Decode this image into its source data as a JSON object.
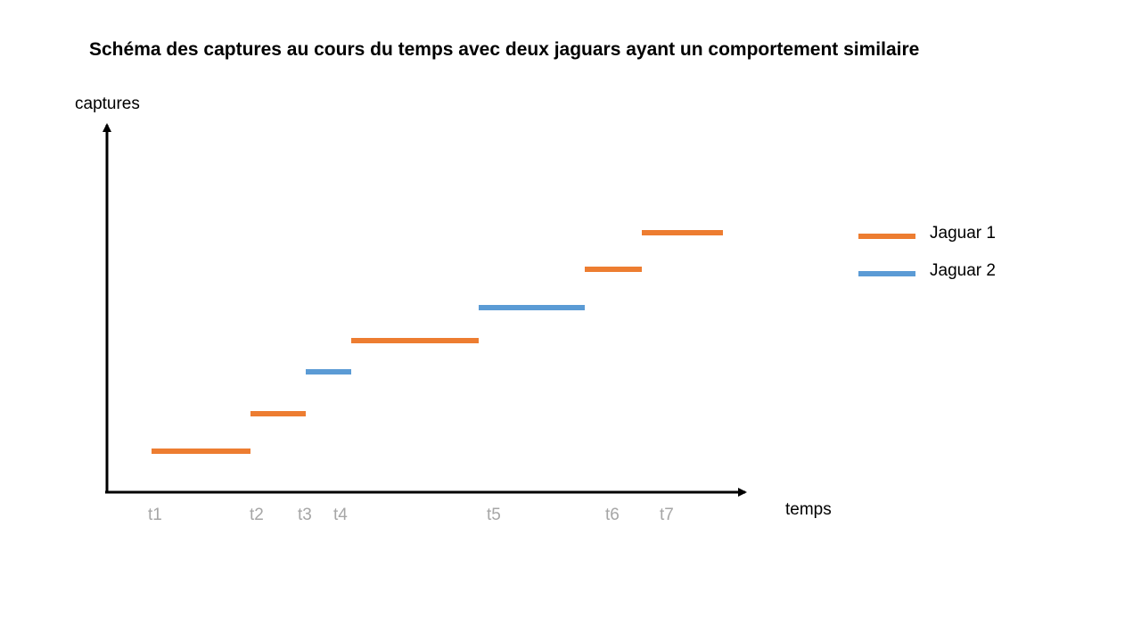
{
  "title": "Schéma des captures au cours du temps avec deux jaguars ayant un comportement similaire",
  "colors": {
    "jaguar1": "#ED7D31",
    "jaguar2": "#5B9BD5",
    "axis": "#000000",
    "tick_text": "#A6A6A6"
  },
  "chart_data": {
    "type": "step-segments",
    "xlabel": "temps",
    "ylabel": "captures",
    "x_ticks": [
      "t1",
      "t2",
      "t3",
      "t4",
      "t5",
      "t6",
      "t7"
    ],
    "legend": [
      {
        "name": "Jaguar 1",
        "color": "#ED7D31"
      },
      {
        "name": "Jaguar 2",
        "color": "#5B9BD5"
      }
    ],
    "legend_position": "right",
    "segments": [
      {
        "series": "Jaguar 1",
        "from": "t1",
        "to": "t2",
        "captures": 1
      },
      {
        "series": "Jaguar 1",
        "from": "t2",
        "to": "t3",
        "captures": 2
      },
      {
        "series": "Jaguar 2",
        "from": "t3",
        "to": "t4",
        "captures": 3
      },
      {
        "series": "Jaguar 1",
        "from": "t4",
        "to": "t5",
        "captures": 4
      },
      {
        "series": "Jaguar 2",
        "from": "t5",
        "to": "t6",
        "captures": 5
      },
      {
        "series": "Jaguar 1",
        "from": "t6",
        "to": "t7",
        "captures": 6
      },
      {
        "series": "Jaguar 1",
        "from": "t7",
        "to": null,
        "captures": 7
      }
    ]
  }
}
